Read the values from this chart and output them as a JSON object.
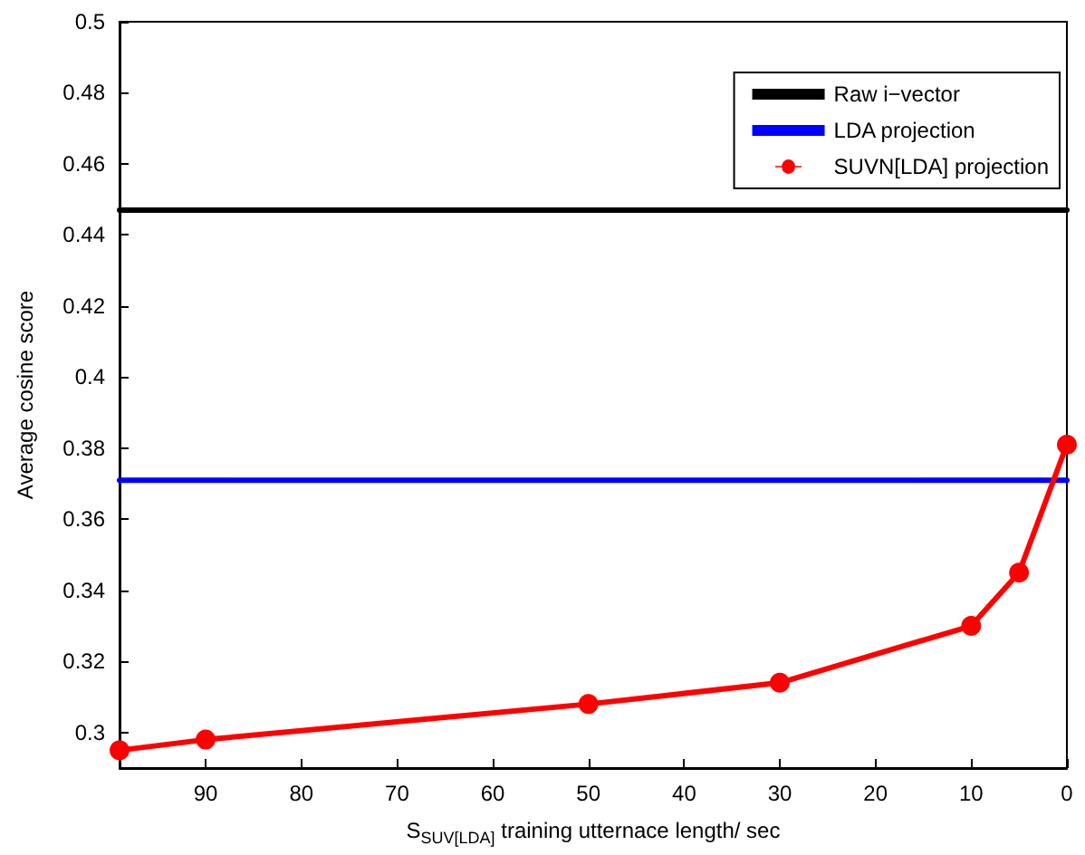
{
  "chart_data": {
    "type": "line",
    "xlabel": "S$_{SUV[LDA]}$ training utternace length/ sec",
    "ylabel": "Average cosine score",
    "xlim": [
      99,
      0
    ],
    "xticks": [
      90,
      80,
      70,
      60,
      50,
      40,
      30,
      20,
      10,
      0
    ],
    "ylim": [
      0.29,
      0.5
    ],
    "yticks": [
      0.3,
      0.32,
      0.34,
      0.36,
      0.38,
      0.4,
      0.42,
      0.44,
      0.46,
      0.48,
      0.5
    ],
    "series": [
      {
        "name": "Raw i−vector",
        "color": "#000000",
        "x": [
          99,
          0
        ],
        "values": [
          0.447,
          0.447
        ],
        "marker": "none"
      },
      {
        "name": "LDA projection",
        "color": "#0000ff",
        "x": [
          99,
          0
        ],
        "values": [
          0.371,
          0.371
        ],
        "marker": "none"
      },
      {
        "name": "SUVN[LDA] projection",
        "color": "#ff0000",
        "x": [
          99,
          90,
          50,
          30,
          10,
          5,
          0
        ],
        "values": [
          0.295,
          0.298,
          0.308,
          0.314,
          0.33,
          0.345,
          0.381
        ],
        "marker": "circle"
      }
    ],
    "grid": false,
    "legend": "top right",
    "line_style": "solid"
  }
}
